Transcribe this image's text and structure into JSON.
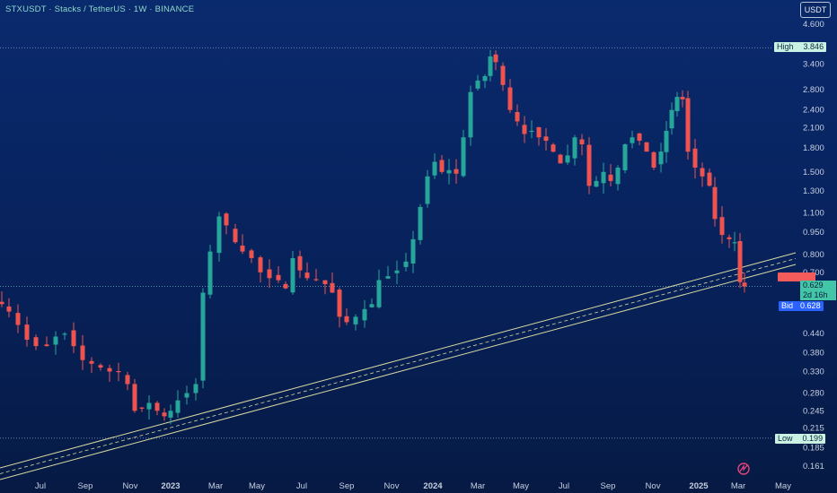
{
  "header": {
    "title": "STXUSDT · Stacks / TetherUS · 1W · BINANCE"
  },
  "toolbar": {
    "currency_button": "USDT"
  },
  "markers": {
    "high_label": "High",
    "high_value": "3.846",
    "low_label": "Low",
    "low_value": "0.199",
    "bid_label": "Bid",
    "bid_value": "0.628",
    "last_price": "0.629",
    "countdown": "2d 16h"
  },
  "chart_data": {
    "type": "candlestick",
    "title": "STXUSDT · Stacks / TetherUS · 1W · BINANCE",
    "y_scale": "log",
    "ylim": [
      0.15,
      5.0
    ],
    "y_ticks": [
      "4.600",
      "3.400",
      "2.800",
      "2.400",
      "2.100",
      "1.800",
      "1.500",
      "1.300",
      "1.100",
      "0.950",
      "0.800",
      "0.700",
      "0.620",
      "0.440",
      "0.380",
      "0.330",
      "0.280",
      "0.245",
      "0.215",
      "0.185",
      "0.161"
    ],
    "x_ticks": [
      "Jul",
      "Sep",
      "Nov",
      "2023",
      "Mar",
      "May",
      "Jul",
      "Sep",
      "Nov",
      "2024",
      "Mar",
      "May",
      "Jul",
      "Sep",
      "Nov",
      "2025",
      "Mar",
      "May"
    ],
    "high": 3.846,
    "low": 0.199,
    "last": 0.629,
    "bid": 0.628,
    "colors": {
      "up": "#26a69a",
      "down": "#ef5350",
      "trendline": "#d8d8a0"
    }
  }
}
